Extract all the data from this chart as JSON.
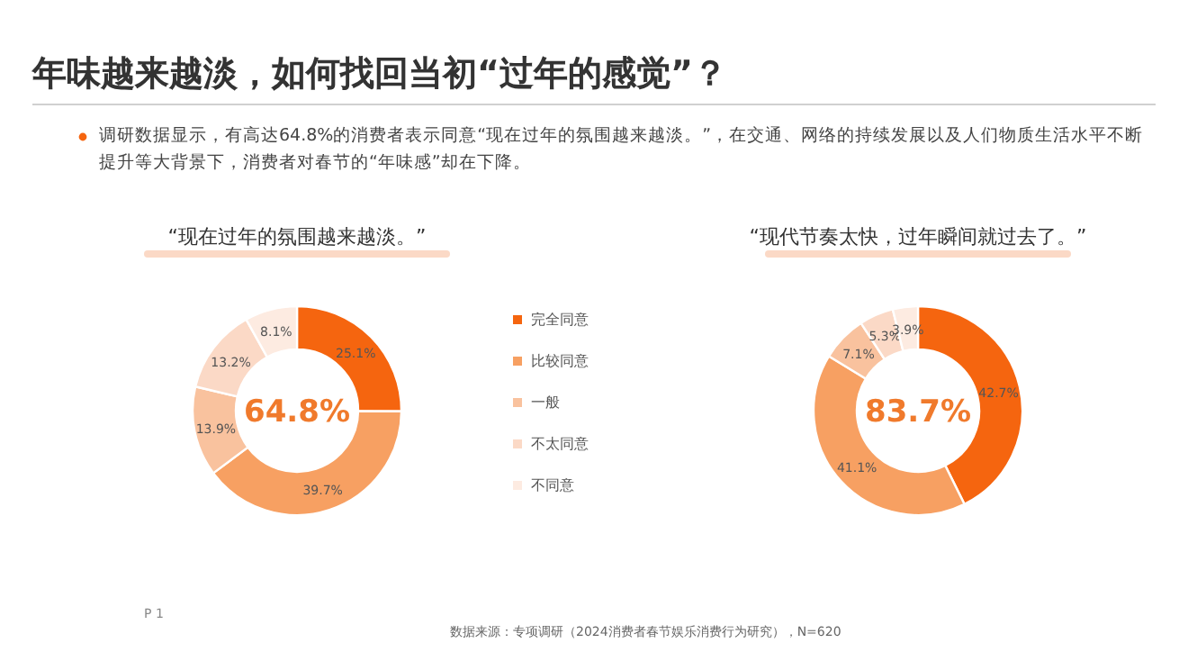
{
  "chart_data": [
    {
      "type": "donut",
      "title": "“现在过年的氛围越来越淡。”",
      "categories": [
        "完全同意",
        "比较同意",
        "一般",
        "不太同意",
        "不同意"
      ],
      "values": [
        25.1,
        39.7,
        13.9,
        13.2,
        8.1
      ],
      "colors": [
        "#f5650f",
        "#f7a062",
        "#f9c29e",
        "#fbd9c6",
        "#fdebe1"
      ],
      "value_labels": [
        "25.1%",
        "39.7%",
        "13.9%",
        "13.2%",
        "8.1%"
      ],
      "legend": "right",
      "annotations": [
        "年味越来越淡，如何找回当初“过年的感觉”？",
        "调研数据显示，有高达64.8%的消费者表示同意“现在过年的氛围越来越淡。”，在交通、网络的持续发展以及人们物质生活水平不断提升等大背景下，消费者对春节的“年味感”却在下降。",
        "64.8%",
        "数据来源：专项调研（2024消费者春节娱乐消费行为研究），N=620",
        "P 1"
      ]
    },
    {
      "type": "donut",
      "title": "“现代节奏太快，过年瞬间就过去了。”",
      "categories": [
        null,
        null,
        null,
        null,
        null
      ],
      "values": [
        42.7,
        41.1,
        7.1,
        5.3,
        3.9
      ],
      "colors": [
        "#f5650f",
        "#f7a062",
        "#f9c29e",
        "#fbd9c6",
        "#fdebe1"
      ],
      "value_labels": [
        "42.7%",
        "41.1%",
        "7.1%",
        "5.3%",
        "3.9%"
      ],
      "annotations": [
        "83.7%"
      ]
    }
  ]
}
